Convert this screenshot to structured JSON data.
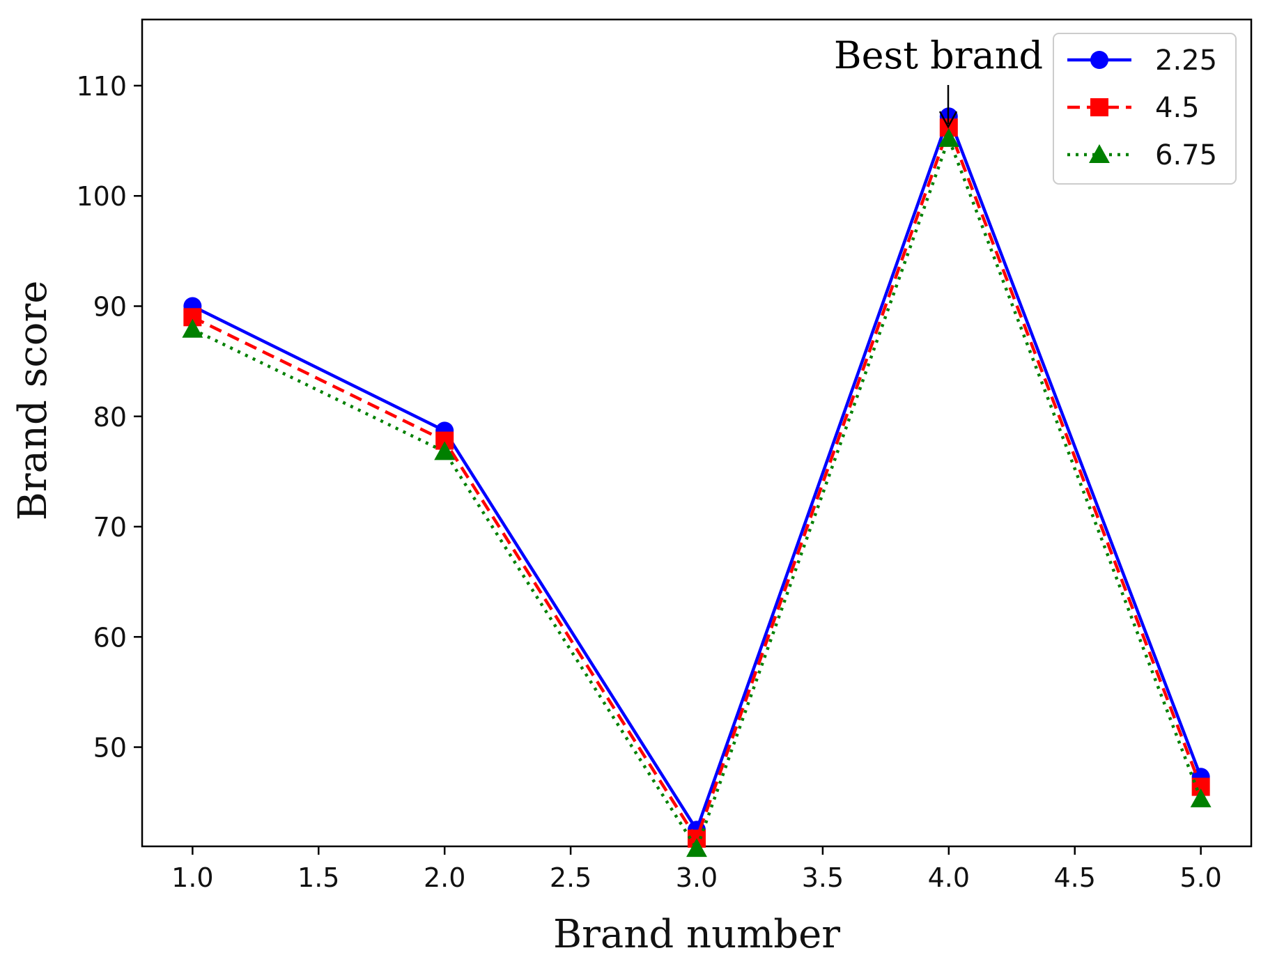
{
  "chart_data": {
    "type": "line",
    "xlabel": "Brand number",
    "ylabel": "Brand score",
    "xlim": [
      0.8,
      5.2
    ],
    "ylim": [
      41,
      116
    ],
    "xticks": [
      "1.0",
      "1.5",
      "2.0",
      "2.5",
      "3.0",
      "3.5",
      "4.0",
      "4.5",
      "5.0"
    ],
    "xtick_values": [
      1.0,
      1.5,
      2.0,
      2.5,
      3.0,
      3.5,
      4.0,
      4.5,
      5.0
    ],
    "yticks": [
      "50",
      "60",
      "70",
      "80",
      "90",
      "100",
      "110"
    ],
    "ytick_values": [
      50,
      60,
      70,
      80,
      90,
      100,
      110
    ],
    "grid": false,
    "legend_position": "top-right",
    "x": [
      1,
      2,
      3,
      4,
      5
    ],
    "series": [
      {
        "name": "2.25",
        "values": [
          90.0,
          78.7,
          42.5,
          107.2,
          47.3
        ],
        "color": "#0000ff",
        "line": "solid",
        "marker": "circle"
      },
      {
        "name": "4.5",
        "values": [
          89.0,
          77.8,
          41.7,
          106.2,
          46.4
        ],
        "color": "#ff0000",
        "line": "dashed",
        "marker": "square"
      },
      {
        "name": "6.75",
        "values": [
          87.9,
          76.8,
          40.8,
          105.2,
          45.3
        ],
        "color": "#008000",
        "line": "dotted",
        "marker": "triangle"
      }
    ],
    "annotation": {
      "text": "Best brand",
      "x": 4,
      "y": 107.2
    }
  }
}
